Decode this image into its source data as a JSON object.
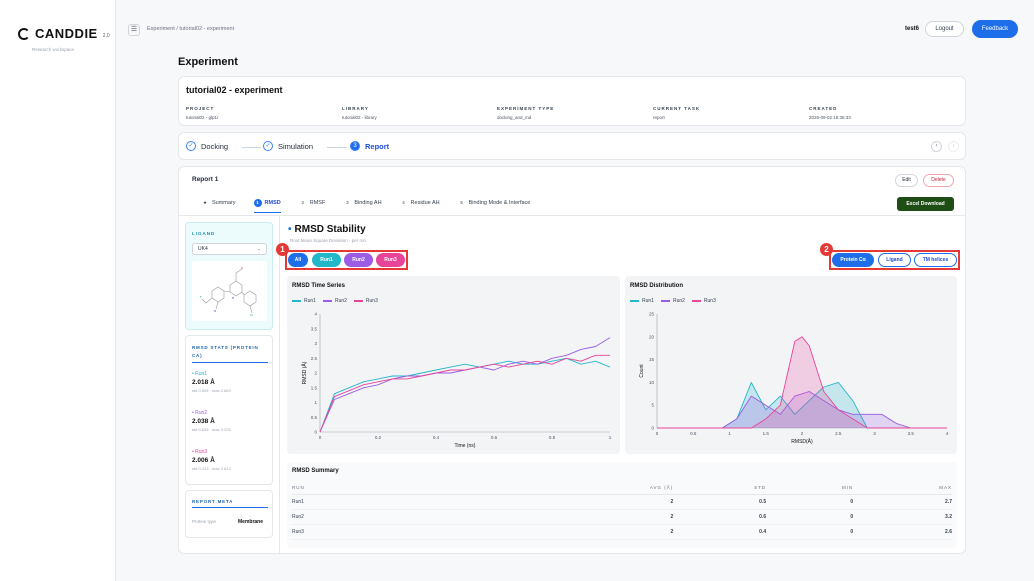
{
  "app": {
    "name": "CANDDIE",
    "version": "2.0",
    "tagline": "Research workspace"
  },
  "topbar": {
    "breadcrumb": "Experiment / tutorial02 - experiment",
    "user": "test6",
    "logout_label": "Logout",
    "feedback_label": "Feedback"
  },
  "page": {
    "title": "Experiment"
  },
  "experiment": {
    "name": "tutorial02 - experiment",
    "meta": [
      {
        "key": "PROJECT",
        "value": "tutorial02 - glp1r"
      },
      {
        "key": "LIBRARY",
        "value": "tutorial02 - library"
      },
      {
        "key": "EXPERIMENT TYPE",
        "value": "docking_and_md"
      },
      {
        "key": "CURRENT TASK",
        "value": "report"
      },
      {
        "key": "CREATED",
        "value": "2026-09-02 16:35:33"
      }
    ]
  },
  "steps": [
    {
      "label": "Docking",
      "icon": "check-icon"
    },
    {
      "label": "Simulation",
      "icon": "check-icon"
    },
    {
      "label": "Report",
      "number": "3"
    }
  ],
  "report": {
    "title": "Report 1",
    "edit_label": "Edit",
    "delete_label": "Delete",
    "excel_label": "Excel Download",
    "tabs": [
      {
        "num": "★",
        "label": "Summary"
      },
      {
        "num": "1",
        "label": "RMSD"
      },
      {
        "num": "2",
        "label": "RMSF"
      },
      {
        "num": "3",
        "label": "Binding AH"
      },
      {
        "num": "4",
        "label": "Residue AH"
      },
      {
        "num": "5",
        "label": "Binding Mode & Interface"
      }
    ]
  },
  "ligand": {
    "label": "LIGAND",
    "selected": "UK4"
  },
  "stats": {
    "title": "RMSD STATS (PROTEIN CA)",
    "runs": [
      {
        "name": "• Run1",
        "value": "2.018 Å",
        "sub": "std 0.528 · max 2.663"
      },
      {
        "name": "• Run2",
        "value": "2.038 Å",
        "sub": "std 0.633 · max 3.226"
      },
      {
        "name": "• Run3",
        "value": "2.006 Å",
        "sub": "std 0.413 · max 2.613"
      }
    ]
  },
  "report_meta": {
    "title": "REPORT META",
    "key": "Protein type",
    "value": "Membrane"
  },
  "rmsd": {
    "title": "RMSD Stability",
    "subtitle": "Root Mean Square Deviation · per run",
    "run_filters": [
      "All",
      "Run1",
      "Run2",
      "Run3"
    ],
    "target_filters": [
      "Protein Cα",
      "Ligand",
      "TM helices"
    ],
    "annotations": [
      "1",
      "2"
    ]
  },
  "colors": {
    "run1": "#22b8c9",
    "run2": "#9b5de5",
    "run3": "#e8449a",
    "accent": "#1d6ee8",
    "annotation": "#e53935"
  },
  "chart_data": [
    {
      "type": "line",
      "title": "RMSD Time Series",
      "xlabel": "Time (ns)",
      "ylabel": "RMSD (Å)",
      "xlim": [
        0,
        1
      ],
      "ylim": [
        0,
        4
      ],
      "xticks": [
        "0",
        "0.2",
        "0.4",
        "0.6",
        "0.8",
        "1"
      ],
      "yticks": [
        "0",
        "0.5",
        "1",
        "1.5",
        "2",
        "2.5",
        "3",
        "3.5",
        "4"
      ],
      "series": [
        {
          "name": "Run1",
          "x": [
            0,
            0.05,
            0.1,
            0.15,
            0.2,
            0.25,
            0.3,
            0.35,
            0.4,
            0.45,
            0.5,
            0.55,
            0.6,
            0.65,
            0.7,
            0.75,
            0.8,
            0.85,
            0.9,
            0.95,
            1
          ],
          "y": [
            0,
            1.3,
            1.5,
            1.7,
            1.8,
            1.9,
            1.9,
            2.0,
            2.1,
            2.2,
            2.3,
            2.2,
            2.3,
            2.4,
            2.3,
            2.3,
            2.4,
            2.5,
            2.3,
            2.4,
            2.2
          ]
        },
        {
          "name": "Run2",
          "x": [
            0,
            0.05,
            0.1,
            0.15,
            0.2,
            0.25,
            0.3,
            0.35,
            0.4,
            0.45,
            0.5,
            0.55,
            0.6,
            0.65,
            0.7,
            0.75,
            0.8,
            0.85,
            0.9,
            0.95,
            1
          ],
          "y": [
            0,
            1.1,
            1.3,
            1.5,
            1.6,
            1.8,
            1.9,
            1.9,
            2.0,
            2.0,
            2.1,
            2.2,
            2.1,
            2.3,
            2.4,
            2.3,
            2.5,
            2.6,
            2.8,
            2.9,
            3.2
          ]
        },
        {
          "name": "Run3",
          "x": [
            0,
            0.05,
            0.1,
            0.15,
            0.2,
            0.25,
            0.3,
            0.35,
            0.4,
            0.45,
            0.5,
            0.55,
            0.6,
            0.65,
            0.7,
            0.75,
            0.8,
            0.85,
            0.9,
            0.95,
            1
          ],
          "y": [
            0,
            1.2,
            1.4,
            1.6,
            1.7,
            1.8,
            1.8,
            1.9,
            2.0,
            2.1,
            2.1,
            2.2,
            2.3,
            2.2,
            2.3,
            2.4,
            2.3,
            2.5,
            2.4,
            2.6,
            2.6
          ]
        }
      ]
    },
    {
      "type": "area",
      "title": "RMSD Distribution",
      "xlabel": "RMSD(Å)",
      "ylabel": "Count",
      "xlim": [
        0,
        4
      ],
      "ylim": [
        0,
        25
      ],
      "xticks": [
        "0",
        "0.5",
        "1",
        "1.5",
        "2",
        "2.5",
        "3",
        "3.5",
        "4"
      ],
      "yticks": [
        "0",
        "5",
        "10",
        "15",
        "20",
        "25"
      ],
      "series": [
        {
          "name": "Run1",
          "x": [
            0,
            0.5,
            0.9,
            1.1,
            1.3,
            1.5,
            1.7,
            1.9,
            2.1,
            2.3,
            2.5,
            2.7,
            2.9,
            3.1,
            4
          ],
          "y": [
            0,
            0,
            0,
            2,
            10,
            4,
            7,
            3,
            6,
            9,
            10,
            6,
            0,
            0,
            0
          ]
        },
        {
          "name": "Run2",
          "x": [
            0,
            0.5,
            0.9,
            1.1,
            1.3,
            1.5,
            1.7,
            1.9,
            2.1,
            2.3,
            2.5,
            2.7,
            2.9,
            3.1,
            3.3,
            3.5,
            4
          ],
          "y": [
            0,
            0,
            0,
            2,
            7,
            5,
            3,
            7,
            8,
            6,
            4,
            3,
            3,
            3,
            1,
            0,
            0
          ]
        },
        {
          "name": "Run3",
          "x": [
            0,
            0.5,
            1.3,
            1.5,
            1.7,
            1.9,
            2.0,
            2.1,
            2.3,
            2.5,
            2.7,
            2.9,
            3.1,
            4
          ],
          "y": [
            0,
            0,
            0,
            2,
            5,
            19,
            20,
            18,
            8,
            4,
            2,
            0,
            0,
            0
          ]
        }
      ]
    }
  ],
  "summary": {
    "title": "RMSD Summary",
    "columns": [
      "RUN",
      "AVG (Å)",
      "STD",
      "MIN",
      "MAX"
    ],
    "rows": [
      [
        "Run1",
        "2",
        "0.5",
        "0",
        "2.7"
      ],
      [
        "Run2",
        "2",
        "0.6",
        "0",
        "3.2"
      ],
      [
        "Run3",
        "2",
        "0.4",
        "0",
        "2.6"
      ]
    ]
  }
}
